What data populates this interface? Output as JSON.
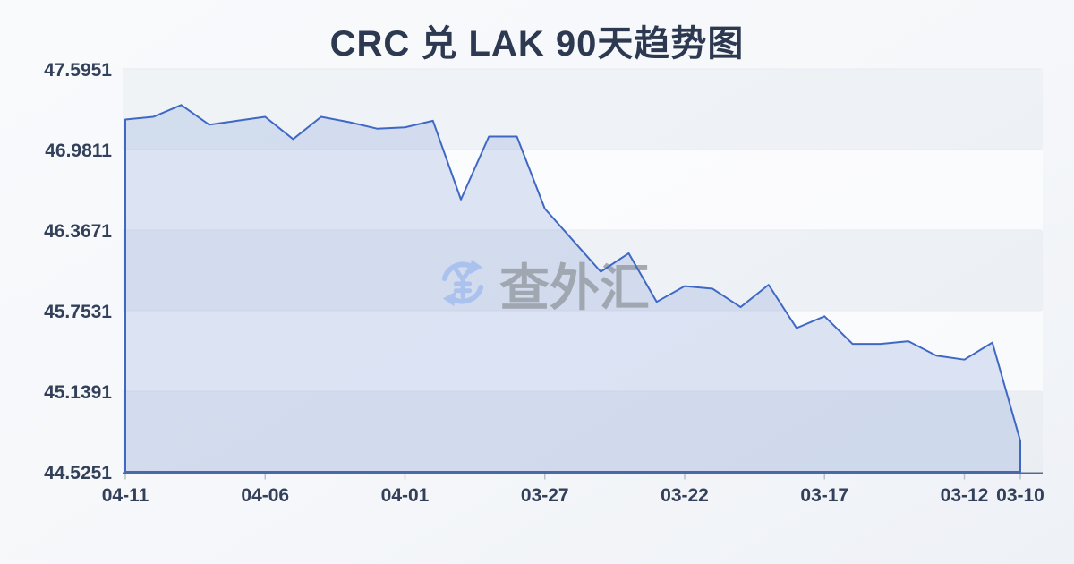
{
  "page": {
    "background_top": "#f8fafc",
    "background_bottom": "#eef1f6"
  },
  "watermark": {
    "icon": "currency-exchange-icon",
    "icon_color": "#a9c1ef",
    "text": "查外汇",
    "text_color": "#9aa0a8"
  },
  "chart_data": {
    "type": "area",
    "title": "CRC 兑 LAK 90天趋势图",
    "xlabel": "",
    "ylabel": "",
    "grid": true,
    "legend_position": "none",
    "line_color": "#3f68c5",
    "fill_color": "rgba(65,105,200,0.16)",
    "axis_color": "#56688c",
    "tick_color": "#b9c0cc",
    "grid_color": "#e7eaef",
    "label_color": "#33405a",
    "title_color": "#2c3950",
    "ylim": [
      44.5251,
      47.5951
    ],
    "y_tick_labels": [
      "47.5951",
      "46.9811",
      "46.3671",
      "45.7531",
      "45.1391",
      "44.5251"
    ],
    "x": [
      "04-11",
      "04-10",
      "04-09",
      "04-08",
      "04-07",
      "04-06",
      "04-05",
      "04-04",
      "04-03",
      "04-02",
      "04-01",
      "03-31",
      "03-30",
      "03-29",
      "03-28",
      "03-27",
      "03-26",
      "03-25",
      "03-24",
      "03-23",
      "03-22",
      "03-21",
      "03-20",
      "03-19",
      "03-18",
      "03-17",
      "03-16",
      "03-15",
      "03-14",
      "03-13",
      "03-12",
      "03-11",
      "03-10"
    ],
    "values": [
      47.21,
      47.23,
      47.32,
      47.17,
      47.2,
      47.23,
      47.06,
      47.23,
      47.19,
      47.14,
      47.15,
      47.2,
      46.6,
      47.08,
      47.08,
      46.53,
      46.29,
      46.05,
      46.19,
      45.82,
      45.94,
      45.92,
      45.78,
      45.95,
      45.62,
      45.71,
      45.5,
      45.5,
      45.52,
      45.41,
      45.38,
      45.51,
      44.76
    ],
    "x_tick_labels": [
      "04-11",
      "04-06",
      "04-01",
      "03-27",
      "03-22",
      "03-17",
      "03-12",
      "03-10"
    ],
    "x_tick_indices": [
      0,
      5,
      10,
      15,
      20,
      25,
      30,
      32
    ]
  }
}
